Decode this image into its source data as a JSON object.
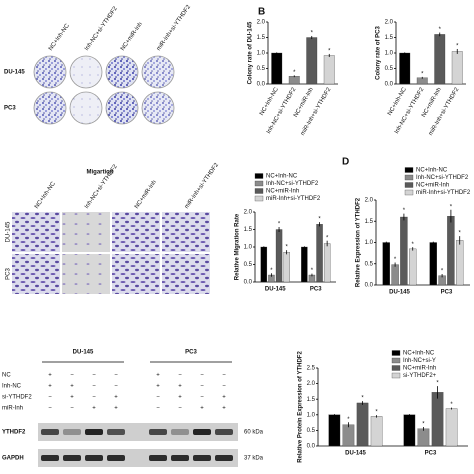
{
  "panels": {
    "panel_b_label": "B",
    "panel_d_label": "D",
    "colony": {
      "columns": [
        "NC+Inh-NC",
        "Inh-NC+si-YTHDF2",
        "NC+miR-Inh",
        "miR-Inh+si-YTHDF2"
      ],
      "rows": [
        "DU-145",
        "PC3"
      ]
    },
    "migration": {
      "title": "Migartion",
      "columns": [
        "NC+Inh-NC",
        "Inh-NC+si-YTHDF2",
        "NC+miR-Inh",
        "miR-Inh+si-YTHDF2"
      ],
      "rows": [
        "DU-145",
        "PC3"
      ]
    },
    "blot": {
      "groups": [
        "DU-145",
        "PC3"
      ],
      "rows": [
        {
          "label": "NC",
          "marks": [
            "+",
            "−",
            "−",
            "−",
            "+",
            "−",
            "−",
            "−"
          ]
        },
        {
          "label": "Inh-NC",
          "marks": [
            "+",
            "+",
            "−",
            "−",
            "+",
            "+",
            "−",
            "−"
          ]
        },
        {
          "label": "si-YTHDF2",
          "marks": [
            "−",
            "+",
            "−",
            "+",
            "−",
            "+",
            "−",
            "+"
          ]
        },
        {
          "label": "miR-Inh",
          "marks": [
            "−",
            "−",
            "+",
            "+",
            "−",
            "−",
            "+",
            "+"
          ]
        }
      ],
      "bands": [
        {
          "label": "YTHDF2",
          "size": "60 kDa"
        },
        {
          "label": "GAPDH",
          "size": "37 kDa"
        }
      ]
    }
  },
  "chart_data": [
    {
      "type": "bar",
      "ylabel": "Colony rate of DU-145",
      "categories": [
        "NC+Inh-NC",
        "Inh-NC+si-YTHDF2",
        "NC+miR-Inh",
        "miR-Inh+si-YTHDF2"
      ],
      "values": [
        1.0,
        0.25,
        1.5,
        0.92
      ],
      "errors": [
        0.02,
        0.03,
        0.05,
        0.05
      ],
      "colors": [
        "#000000",
        "#8c8c8c",
        "#5a5a5a",
        "#d4d4d4"
      ],
      "annotations": [
        null,
        "*",
        "*",
        "*"
      ],
      "ylim": [
        0,
        2
      ],
      "yticks": [
        {
          "value": 0,
          "label": "0.0"
        },
        0.5,
        {
          "value": 1,
          "label": "1.0"
        },
        1.5,
        {
          "value": 2,
          "label": "2.0"
        }
      ]
    },
    {
      "type": "bar",
      "ylabel": "Colony rate of PC3",
      "categories": [
        "NC+Inh-NC",
        "Inh-NC+si-YTHDF2",
        "NC+miR-Inh",
        "miR-Inh+si-YTHDF2"
      ],
      "values": [
        1.0,
        0.2,
        1.6,
        1.05
      ],
      "errors": [
        0.02,
        0.03,
        0.06,
        0.08
      ],
      "colors": [
        "#000000",
        "#8c8c8c",
        "#5a5a5a",
        "#d4d4d4"
      ],
      "annotations": [
        null,
        "*",
        "*",
        "*"
      ],
      "ylim": [
        0,
        2
      ],
      "yticks": [
        {
          "value": 0,
          "label": "0.0"
        },
        0.5,
        {
          "value": 1,
          "label": "1.0"
        },
        1.5,
        {
          "value": 2,
          "label": "2.0"
        }
      ]
    },
    {
      "type": "bar",
      "ylabel": "Relative Migration Rate",
      "legend": true,
      "categories": [
        "DU-145",
        "PC3"
      ],
      "series": [
        {
          "name": "NC+Inh-NC",
          "color": "#000000",
          "values": [
            1.0,
            1.0
          ],
          "errors": [
            0.02,
            0.02
          ]
        },
        {
          "name": "Inh-NC+si-YTHDF2",
          "color": "#8c8c8c",
          "values": [
            0.2,
            0.2
          ],
          "errors": [
            0.05,
            0.04
          ],
          "annotation": "*"
        },
        {
          "name": "NC+miR-Inh",
          "color": "#5a5a5a",
          "values": [
            1.5,
            1.65
          ],
          "errors": [
            0.07,
            0.06
          ],
          "annotation": "*"
        },
        {
          "name": "miR-Inh+si-YTHDF2",
          "color": "#d4d4d4",
          "values": [
            0.85,
            1.1
          ],
          "errors": [
            0.06,
            0.08
          ],
          "annotation": "*"
        }
      ],
      "ylim": [
        0,
        2
      ],
      "yticks": [
        {
          "value": 0,
          "label": "0.0"
        },
        0.5,
        {
          "value": 1,
          "label": "1.0"
        },
        1.5,
        {
          "value": 2,
          "label": "2.0"
        }
      ]
    },
    {
      "type": "bar",
      "ylabel": "Relative Expression of YTHDF2",
      "legend": true,
      "categories": [
        "DU-145",
        "PC3"
      ],
      "series": [
        {
          "name": "NC+Inh-NC",
          "color": "#000000",
          "values": [
            1.0,
            1.0
          ],
          "errors": [
            0.02,
            0.02
          ]
        },
        {
          "name": "Inh-NC+si-YTHDF2",
          "color": "#8c8c8c",
          "values": [
            0.48,
            0.22
          ],
          "errors": [
            0.05,
            0.04
          ],
          "annotation": "*"
        },
        {
          "name": "NC+miR-Inh",
          "color": "#5a5a5a",
          "values": [
            1.6,
            1.62
          ],
          "errors": [
            0.08,
            0.15
          ],
          "annotation": "*"
        },
        {
          "name": "miR-Inh+si-YTHDF2",
          "color": "#d4d4d4",
          "values": [
            0.85,
            1.05
          ],
          "errors": [
            0.04,
            0.1
          ],
          "annotation": "*"
        }
      ],
      "ylim": [
        0,
        2
      ],
      "yticks": [
        {
          "value": 0,
          "label": "0.0"
        },
        0.5,
        {
          "value": 1,
          "label": "1.0"
        },
        1.5,
        {
          "value": 2,
          "label": "2.0"
        }
      ]
    },
    {
      "type": "bar",
      "ylabel": "Relative Protein Expression of YTHDF2",
      "legend": true,
      "categories": [
        "DU-145",
        "PC3"
      ],
      "series": [
        {
          "name": "NC+Inh-NC",
          "color": "#000000",
          "values": [
            1.0,
            1.0
          ],
          "errors": [
            0.02,
            0.02
          ]
        },
        {
          "name": "Inh-NC+si-Y",
          "color": "#8c8c8c",
          "values": [
            0.68,
            0.55
          ],
          "errors": [
            0.08,
            0.06
          ],
          "annotation": "*"
        },
        {
          "name": "NC+miR-Inh",
          "color": "#5a5a5a",
          "values": [
            1.38,
            1.72
          ],
          "errors": [
            0.06,
            0.2
          ],
          "annotation": "*"
        },
        {
          "name": "si-YTHDF2+",
          "color": "#d4d4d4",
          "values": [
            0.95,
            1.2
          ],
          "errors": [
            0.04,
            0.03
          ],
          "annotation": "*"
        }
      ],
      "ylim": [
        0,
        2.5
      ],
      "yticks": [
        {
          "value": 0,
          "label": "0.0"
        },
        0.5,
        {
          "value": 1,
          "label": "1.0"
        },
        1.5,
        {
          "value": 2,
          "label": "2.0"
        },
        2.5
      ]
    }
  ]
}
